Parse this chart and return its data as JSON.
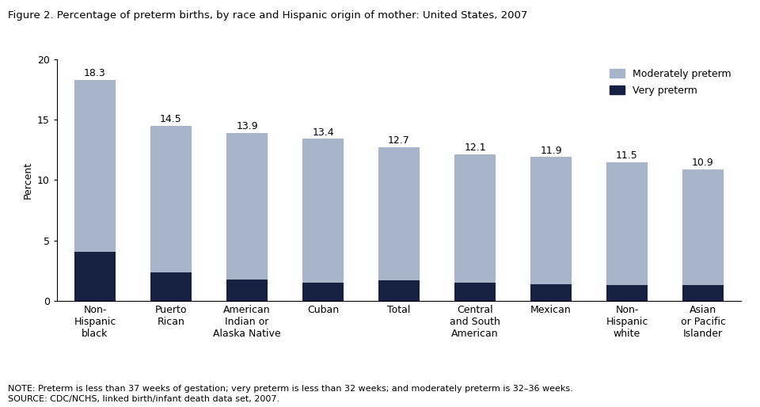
{
  "title": "Figure 2. Percentage of preterm births, by race and Hispanic origin of mother: United States, 2007",
  "categories": [
    "Non-\nHispanic\nblack",
    "Puerto\nRican",
    "American\nIndian or\nAlaska Native",
    "Cuban",
    "Total",
    "Central\nand South\nAmerican",
    "Mexican",
    "Non-\nHispanic\nwhite",
    "Asian\nor Pacific\nIslander"
  ],
  "total_values": [
    18.3,
    14.5,
    13.9,
    13.4,
    12.7,
    12.1,
    11.9,
    11.5,
    10.9
  ],
  "very_preterm": [
    4.1,
    2.4,
    1.8,
    1.5,
    1.7,
    1.5,
    1.4,
    1.3,
    1.3
  ],
  "moderately_preterm_color": "#a8b4ca",
  "very_preterm_color": "#162040",
  "ylabel": "Percent",
  "ylim": [
    0,
    20
  ],
  "yticks": [
    0,
    5,
    10,
    15,
    20
  ],
  "note_line1": "NOTE: Preterm is less than 37 weeks of gestation; very preterm is less than 32 weeks; and moderately preterm is 32–36 weeks.",
  "note_line2": "SOURCE: CDC/NCHS, linked birth/infant death data set, 2007.",
  "legend_moderately": "Moderately preterm",
  "legend_very": "Very preterm",
  "title_fontsize": 9.5,
  "axis_fontsize": 9,
  "tick_fontsize": 9,
  "label_fontsize": 9,
  "note_fontsize": 8,
  "background_color": "#ffffff",
  "bar_width": 0.55
}
